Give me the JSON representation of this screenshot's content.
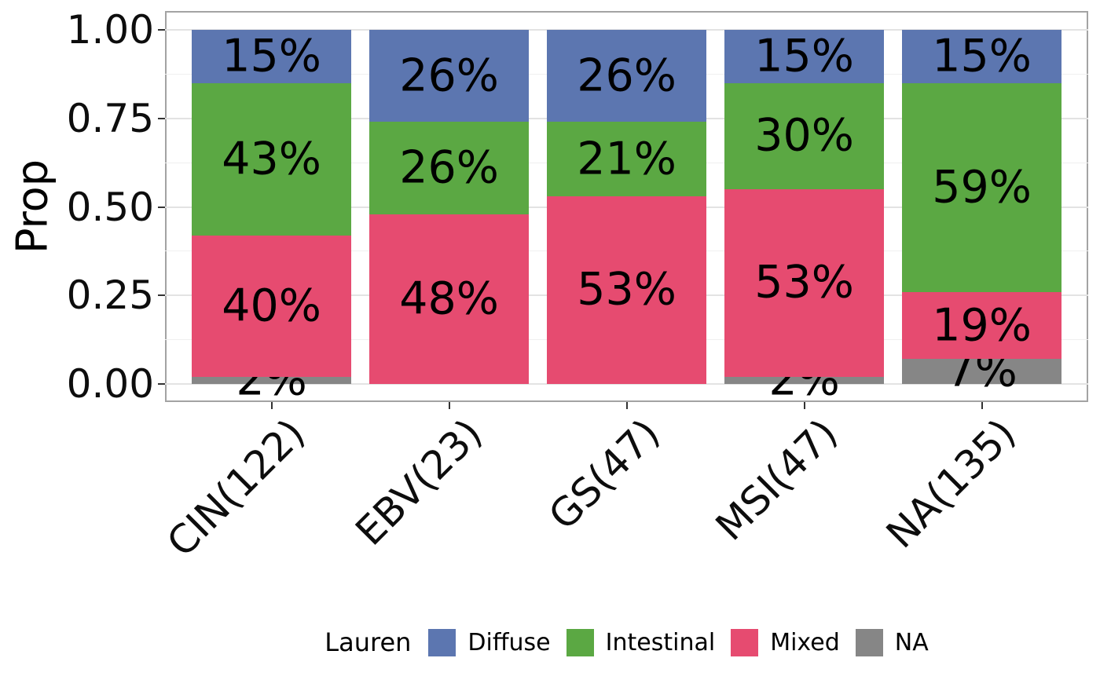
{
  "y_axis": {
    "title": "Prop",
    "tick_labels": [
      "1.00",
      "0.75",
      "0.50",
      "0.25",
      "0.00"
    ],
    "tick_values": [
      1.0,
      0.75,
      0.5,
      0.25,
      0.0
    ]
  },
  "legend": {
    "title": "Lauren",
    "items": [
      {
        "label": "Diffuse",
        "color": "#5C76B0"
      },
      {
        "label": "Intestinal",
        "color": "#5BA843"
      },
      {
        "label": "Mixed",
        "color": "#E64B70"
      },
      {
        "label": "NA",
        "color": "#868686"
      }
    ]
  },
  "chart_data": {
    "type": "bar",
    "stacked": true,
    "orientation": "vertical",
    "title": "",
    "xlabel": "",
    "ylabel": "Prop",
    "ylim": [
      0,
      1
    ],
    "y_major_ticks": [
      0,
      0.25,
      0.5,
      0.75,
      1.0
    ],
    "y_minor_ticks": [
      0.125,
      0.375,
      0.625,
      0.875
    ],
    "grid": true,
    "legend_position": "bottom",
    "legend_title": "Lauren",
    "categories": [
      "CIN(122)",
      "EBV(23)",
      "GS(47)",
      "MSI(47)",
      "NA(135)"
    ],
    "series": [
      {
        "name": "Diffuse",
        "color": "#5C76B0",
        "values": [
          0.15,
          0.26,
          0.26,
          0.15,
          0.15
        ],
        "labels": [
          "15%",
          "26%",
          "26%",
          "15%",
          "15%"
        ]
      },
      {
        "name": "Intestinal",
        "color": "#5BA843",
        "values": [
          0.43,
          0.26,
          0.21,
          0.3,
          0.59
        ],
        "labels": [
          "43%",
          "26%",
          "21%",
          "30%",
          "59%"
        ]
      },
      {
        "name": "Mixed",
        "color": "#E64B70",
        "values": [
          0.4,
          0.48,
          0.53,
          0.53,
          0.19
        ],
        "labels": [
          "40%",
          "48%",
          "53%",
          "53%",
          "19%"
        ]
      },
      {
        "name": "NA",
        "color": "#868686",
        "values": [
          0.02,
          0.0,
          0.0,
          0.02,
          0.07
        ],
        "labels": [
          "2%",
          "",
          "",
          "2%",
          "7%"
        ]
      }
    ]
  }
}
